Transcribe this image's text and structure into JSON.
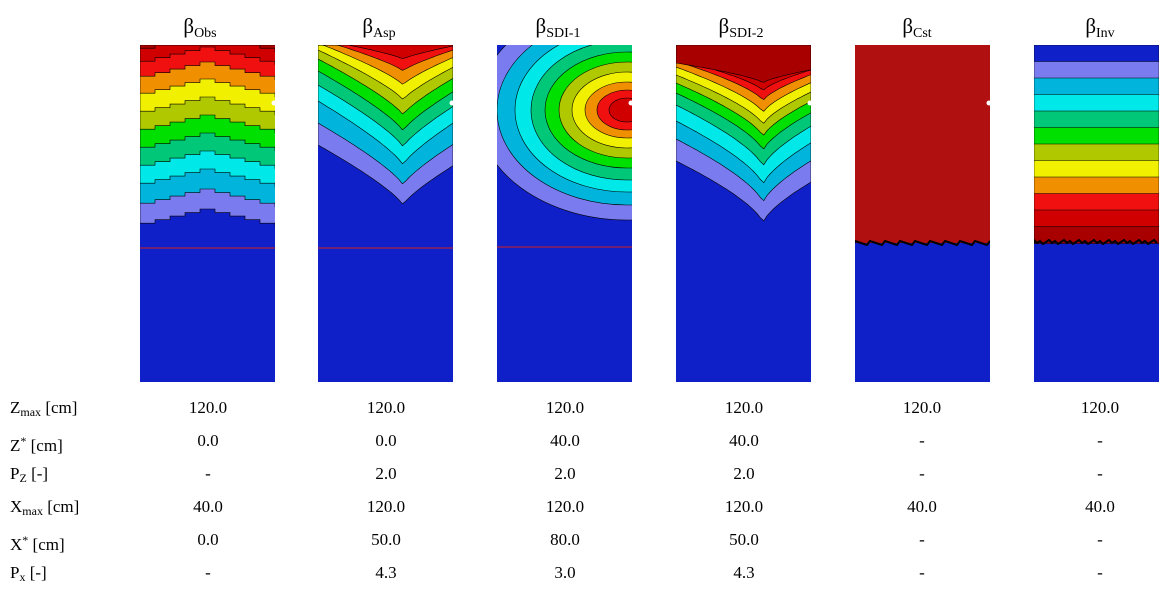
{
  "panels": [
    {
      "id": "obs",
      "symbol": "β",
      "sub": "Obs"
    },
    {
      "id": "asp",
      "symbol": "β",
      "sub": "Asp"
    },
    {
      "id": "sdi1",
      "symbol": "β",
      "sub": "SDI-1"
    },
    {
      "id": "sdi2",
      "symbol": "β",
      "sub": "SDI-2"
    },
    {
      "id": "cst",
      "symbol": "β",
      "sub": "Cst"
    },
    {
      "id": "inv",
      "symbol": "β",
      "sub": "Inv"
    }
  ],
  "rows": [
    {
      "main": "Z",
      "sub": "max",
      "sup": "",
      "unit": " [cm]",
      "values": [
        "120.0",
        "120.0",
        "120.0",
        "120.0",
        "120.0",
        "120.0"
      ]
    },
    {
      "main": "Z",
      "sub": "",
      "sup": "*",
      "unit": " [cm]",
      "values": [
        "0.0",
        "0.0",
        "40.0",
        "40.0",
        "-",
        "-"
      ]
    },
    {
      "main": "P",
      "sub": "Z",
      "sup": "",
      "unit": " [-]",
      "values": [
        "-",
        "2.0",
        "2.0",
        "2.0",
        "-",
        "-"
      ]
    },
    {
      "main": "X",
      "sub": "max",
      "sup": "",
      "unit": " [cm]",
      "values": [
        "40.0",
        "120.0",
        "120.0",
        "120.0",
        "40.0",
        "40.0"
      ]
    },
    {
      "main": "X",
      "sub": "",
      "sup": "*",
      "unit": " [cm]",
      "values": [
        "0.0",
        "50.0",
        "80.0",
        "50.0",
        "-",
        "-"
      ]
    },
    {
      "main": "P",
      "sub": "x",
      "sup": "",
      "unit": " [-]",
      "values": [
        "-",
        "4.3",
        "3.0",
        "4.3",
        "-",
        "-"
      ]
    }
  ],
  "colors": {
    "base": "#1020c8",
    "levels": [
      "#7b7bf0",
      "#00b4dc",
      "#00e8e8",
      "#00c878",
      "#00e000",
      "#b0c800",
      "#f0f000",
      "#f09000",
      "#f01010",
      "#d00000",
      "#a80000"
    ],
    "contour_line": "#000000",
    "cutoff_line": "#d02020"
  }
}
